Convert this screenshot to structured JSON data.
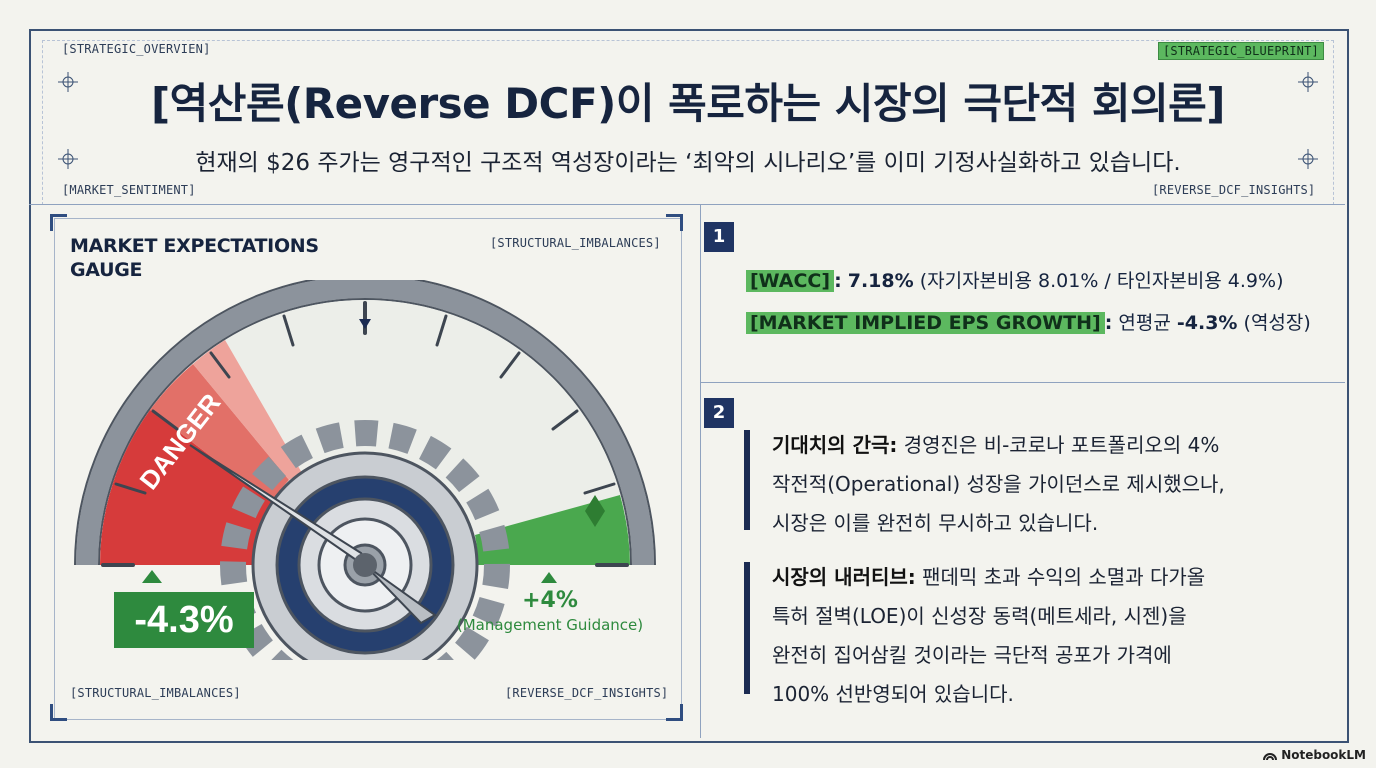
{
  "header": {
    "tag_top_left": "[STRATEGIC_OVERVIEN]",
    "tag_top_right": "[STRATEGIC_BLUEPRINT]",
    "tag_bottom_left": "[MARKET_SENTIMENT]",
    "tag_bottom_right": "[REVERSE_DCF_INSIGHTS]",
    "title": "[역산론(Reverse DCF)이 폭로하는 시장의 극단적 회의론]",
    "subtitle": "현재의 $26 주가는 영구적인 구조적 역성장이라는 ‘최악의 시나리오’를 이미 기정사실화하고 있습니다."
  },
  "gauge": {
    "title_line1": "MARKET EXPECTATIONS",
    "title_line2": "GAUGE",
    "tag_top_right": "[STRUCTURAL_IMBALANCES]",
    "tag_bottom_left": "[STRUCTURAL_IMBALANCES]",
    "tag_bottom_right": "[REVERSE_DCF_INSIGHTS]",
    "danger_label": "DANGER",
    "market_value": "-4.3%",
    "guidance_value": "+4%",
    "guidance_label": "(Management Guidance)",
    "colors": {
      "danger": "#d63b3b",
      "guidance": "#4aa84e",
      "value_box": "#2e8a3e"
    }
  },
  "section1": {
    "number": "1",
    "wacc_tag": "[WACC]",
    "wacc_colon": ":",
    "wacc_value": "7.18%",
    "wacc_detail": "(자기자본비용 8.01% / 타인자본비용 4.9%)",
    "eps_tag": "[MARKET IMPLIED EPS GROWTH]",
    "eps_colon": ":",
    "eps_prefix": "연평균",
    "eps_value": "-4.3%",
    "eps_suffix": "(역성장)"
  },
  "section2": {
    "number": "2",
    "gap_heading": "기대치의 간극:",
    "gap_line1": "경영진은 비-코로나 포트폴리오의 4%",
    "gap_line2": "작전적(Operational) 성장을 가이던스로 제시했으나,",
    "gap_line3": "시장은 이를 완전히 무시하고 있습니다.",
    "narr_heading": "시장의 내러티브:",
    "narr_line1": "팬데믹 초과 수익의 소멸과 다가올",
    "narr_line2": "특허 절벽(LOE)이 신성장 동력(메트세라, 시젠)을",
    "narr_line3": "완전히 집어삼킬 것이라는 극단적 공포가 가격에",
    "narr_line4": "100% 선반영되어 있습니다."
  },
  "footer": {
    "brand": "NotebookLM"
  }
}
